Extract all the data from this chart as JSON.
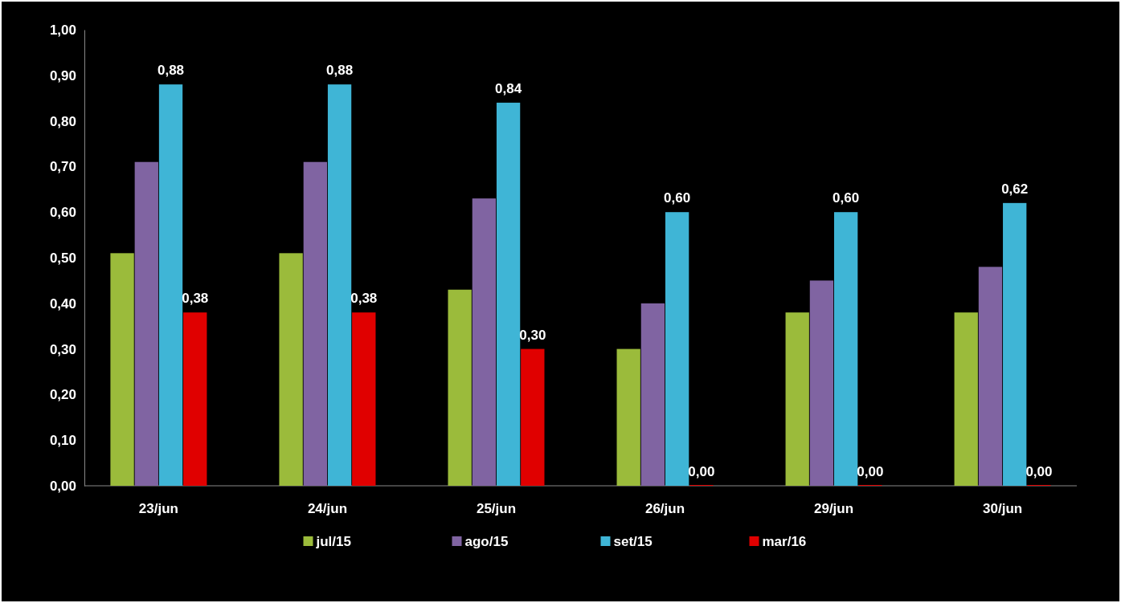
{
  "chart_data": {
    "type": "bar",
    "categories": [
      "23/jun",
      "24/jun",
      "25/jun",
      "26/jun",
      "29/jun",
      "30/jun"
    ],
    "series": [
      {
        "name": "jul/15",
        "color": "#9bbb3b",
        "values": [
          0.51,
          0.51,
          0.43,
          0.3,
          0.38,
          0.38
        ]
      },
      {
        "name": "ago/15",
        "color": "#8064a2",
        "values": [
          0.71,
          0.71,
          0.63,
          0.4,
          0.45,
          0.48
        ]
      },
      {
        "name": "set/15",
        "color": "#3fb5d6",
        "values": [
          0.88,
          0.88,
          0.84,
          0.6,
          0.6,
          0.62
        ],
        "value_labels": [
          "0,88",
          "0,88",
          "0,84",
          "0,60",
          "0,60",
          "0,62"
        ]
      },
      {
        "name": "mar/16",
        "color": "#e00000",
        "values": [
          0.38,
          0.38,
          0.3,
          0.0,
          0.0,
          0.0
        ],
        "value_labels": [
          "0,38",
          "0,38",
          "0,30",
          "0,00",
          "0,00",
          "0,00"
        ]
      }
    ],
    "ylim": [
      0,
      1
    ],
    "yticks": [
      {
        "value": 0,
        "label": "0,00"
      },
      {
        "value": 0.1,
        "label": "0,10"
      },
      {
        "value": 0.2,
        "label": "0,20"
      },
      {
        "value": 0.3,
        "label": "0,30"
      },
      {
        "value": 0.4,
        "label": "0,40"
      },
      {
        "value": 0.5,
        "label": "0,50"
      },
      {
        "value": 0.6,
        "label": "0,60"
      },
      {
        "value": 0.7,
        "label": "0,70"
      },
      {
        "value": 0.8,
        "label": "0,80"
      },
      {
        "value": 0.9,
        "label": "0,90"
      },
      {
        "value": 1,
        "label": "1,00"
      }
    ],
    "grid": false,
    "legend": "bottom"
  }
}
